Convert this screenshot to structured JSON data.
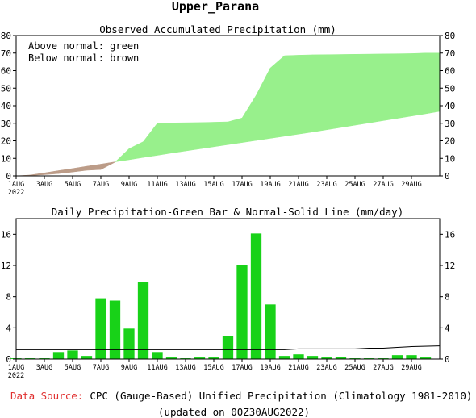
{
  "title": "Upper_Parana",
  "x_labels": [
    "1AUG",
    "3AUG",
    "5AUG",
    "7AUG",
    "9AUG",
    "11AUG",
    "13AUG",
    "15AUG",
    "17AUG",
    "19AUG",
    "21AUG",
    "23AUG",
    "25AUG",
    "27AUG",
    "29AUG"
  ],
  "x_year": "2022",
  "colors": {
    "green_fill": "#98f08c",
    "brown_fill": "#bc9c88",
    "bar": "#18d218",
    "normal_line": "#000000",
    "source": "#e03030"
  },
  "footer": {
    "source_label": "Data Source:",
    "source_text": "CPC (Gauge-Based) Unified Precipitation (Climatology 1981-2010)",
    "updated": "(updated on 00Z30AUG2022)"
  },
  "chart_data": [
    {
      "type": "area",
      "title": "Observed Accumulated Precipitation (mm)",
      "legend_lines": [
        "Above normal: green",
        "Below normal: brown"
      ],
      "ylim": [
        0,
        80
      ],
      "yticks": [
        0,
        10,
        20,
        30,
        40,
        50,
        60,
        70,
        80
      ],
      "x": [
        1,
        2,
        3,
        4,
        5,
        6,
        7,
        8,
        9,
        10,
        11,
        12,
        13,
        14,
        15,
        16,
        17,
        18,
        19,
        20,
        21,
        22,
        23,
        24,
        25,
        26,
        27,
        28,
        29,
        30
      ],
      "series": [
        {
          "name": "observed",
          "values": [
            0.2,
            0.7,
            1.3,
            2.2,
            3.2,
            3.6,
            7.8,
            15.5,
            19.5,
            30.0,
            30.2,
            30.3,
            30.4,
            30.6,
            30.8,
            33.0,
            46.0,
            61.5,
            68.5,
            68.8,
            69.0,
            69.1,
            69.2,
            69.3,
            69.4,
            69.5,
            69.6,
            69.7,
            70.0,
            70.0
          ]
        },
        {
          "name": "normal",
          "values": [
            0.5,
            1.7,
            3.0,
            4.2,
            5.5,
            6.7,
            8.0,
            9.2,
            10.5,
            11.7,
            13.0,
            14.2,
            15.4,
            16.6,
            17.8,
            19.0,
            20.2,
            21.4,
            22.6,
            23.8,
            25.0,
            26.3,
            27.6,
            28.9,
            30.2,
            31.5,
            32.8,
            34.1,
            35.4,
            36.8
          ]
        }
      ]
    },
    {
      "type": "bar",
      "title": "Daily Precipitation-Green Bar & Normal-Solid Line (mm/day)",
      "ylim": [
        0,
        18
      ],
      "yticks": [
        0,
        4,
        8,
        12,
        16
      ],
      "x": [
        1,
        2,
        3,
        4,
        5,
        6,
        7,
        8,
        9,
        10,
        11,
        12,
        13,
        14,
        15,
        16,
        17,
        18,
        19,
        20,
        21,
        22,
        23,
        24,
        25,
        26,
        27,
        28,
        29,
        30
      ],
      "series": [
        {
          "name": "daily",
          "values": [
            0.1,
            0.1,
            0.1,
            0.9,
            1.1,
            0.4,
            7.8,
            7.5,
            3.9,
            9.9,
            0.9,
            0.2,
            0.1,
            0.2,
            0.2,
            2.9,
            12.0,
            16.1,
            7.0,
            0.4,
            0.6,
            0.4,
            0.2,
            0.3,
            0.1,
            0.1,
            0.1,
            0.5,
            0.5,
            0.2
          ]
        },
        {
          "name": "normal",
          "values": [
            1.2,
            1.2,
            1.2,
            1.2,
            1.2,
            1.2,
            1.2,
            1.2,
            1.2,
            1.2,
            1.2,
            1.2,
            1.2,
            1.2,
            1.2,
            1.2,
            1.2,
            1.2,
            1.2,
            1.2,
            1.3,
            1.3,
            1.3,
            1.3,
            1.3,
            1.4,
            1.4,
            1.5,
            1.6,
            1.7
          ]
        }
      ]
    }
  ]
}
